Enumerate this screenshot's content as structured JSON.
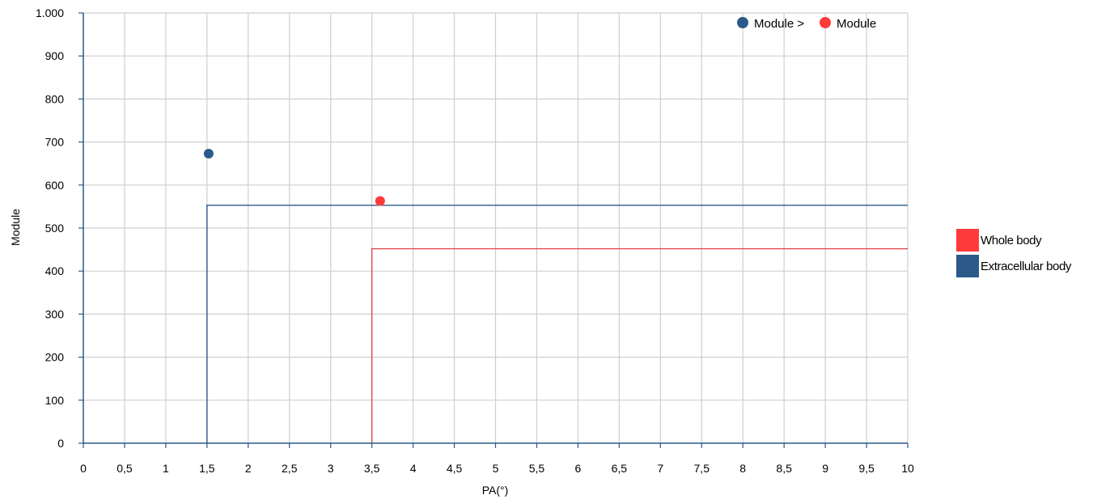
{
  "chart_data": {
    "type": "scatter",
    "title": "",
    "xlabel": "PA(°)",
    "ylabel": "Module",
    "xlim": [
      0,
      10
    ],
    "ylim": [
      0,
      1000
    ],
    "grid": true,
    "x_ticks": [
      0,
      0.5,
      1,
      1.5,
      2,
      2.5,
      3,
      3.5,
      4,
      4.5,
      5,
      5.5,
      6,
      6.5,
      7,
      7.5,
      8,
      8.5,
      9,
      9.5,
      10
    ],
    "x_tick_labels": [
      "0",
      "0,5",
      "1",
      "1,5",
      "2",
      "2,5",
      "3",
      "3,5",
      "4",
      "4,5",
      "5",
      "5,5",
      "6",
      "6,5",
      "7",
      "7,5",
      "8",
      "8,5",
      "9",
      "9,5",
      "10"
    ],
    "y_ticks": [
      0,
      100,
      200,
      300,
      400,
      500,
      600,
      700,
      800,
      900,
      1000
    ],
    "y_tick_labels": [
      "0",
      "100",
      "200",
      "300",
      "400",
      "500",
      "600",
      "700",
      "800",
      "900",
      "1.000"
    ],
    "points": [
      {
        "x": 1.52,
        "y": 673,
        "color": "#2b5a8a"
      },
      {
        "x": 3.6,
        "y": 563,
        "color": "#ff3a3a"
      }
    ],
    "thresholds": [
      {
        "name": "Extracellular body",
        "x": 1.5,
        "y": 553,
        "color": "#2b5a8a"
      },
      {
        "name": "Whole body",
        "x": 3.5,
        "y": 452,
        "color": "#e0484c"
      }
    ],
    "top_legend": {
      "left_label": "Module >",
      "right_label": "Module",
      "left_color": "#2b5a8a",
      "right_color": "#ff3a3a",
      "placement": "top-right"
    },
    "side_legend": [
      {
        "label": "Whole body",
        "color": "#ff3a3a"
      },
      {
        "label": "Extracellular body",
        "color": "#2b5a8a"
      }
    ]
  }
}
